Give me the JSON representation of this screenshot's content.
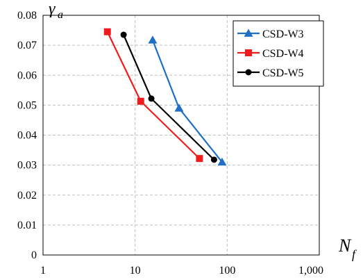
{
  "chart_data": {
    "type": "line",
    "title": "",
    "xlabel": "N",
    "xlabel_subscript": "f",
    "ylabel": "γ",
    "ylabel_subscript": "a",
    "x_scale": "log",
    "xlim": [
      1,
      1000
    ],
    "ylim": [
      0,
      0.08
    ],
    "x_tick_values": [
      1,
      10,
      100,
      1000
    ],
    "x_tick_labels": [
      "1",
      "10",
      "100",
      "1,000"
    ],
    "y_tick_values": [
      0,
      0.01,
      0.02,
      0.03,
      0.04,
      0.05,
      0.06,
      0.07,
      0.08
    ],
    "y_tick_labels": [
      "0",
      "0.01",
      "0.02",
      "0.03",
      "0.04",
      "0.05",
      "0.06",
      "0.07",
      "0.08"
    ],
    "grid": true,
    "legend_position": "top-right",
    "series": [
      {
        "name": "CSD-W3",
        "color": "#1f6fc4",
        "marker": "triangle",
        "points": [
          {
            "x": 15.5,
            "y": 0.0717
          },
          {
            "x": 30,
            "y": 0.049
          },
          {
            "x": 88,
            "y": 0.031
          }
        ]
      },
      {
        "name": "CSD-W4",
        "color": "#ee1c1c",
        "marker": "square",
        "points": [
          {
            "x": 5,
            "y": 0.0745
          },
          {
            "x": 11.5,
            "y": 0.0513
          },
          {
            "x": 50,
            "y": 0.0322
          }
        ]
      },
      {
        "name": "CSD-W5",
        "color": "#000000",
        "marker": "circle",
        "points": [
          {
            "x": 7.5,
            "y": 0.0735
          },
          {
            "x": 15,
            "y": 0.0522
          },
          {
            "x": 72,
            "y": 0.0318
          }
        ]
      }
    ]
  }
}
